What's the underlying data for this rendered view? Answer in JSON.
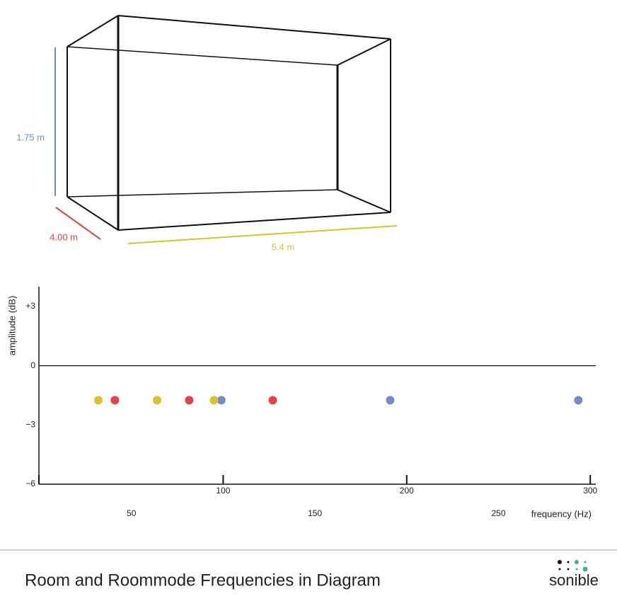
{
  "chart_data": {
    "type": "scatter",
    "x_label": "frequency (Hz)",
    "y_label": "amplitude (dB)",
    "xlim": [
      0,
      303
    ],
    "ylim": [
      -6,
      4
    ],
    "xticks": [
      50,
      100,
      150,
      200,
      250,
      300
    ],
    "yticks": [
      {
        "value": 3,
        "label": "+3"
      },
      0,
      {
        "value": -3,
        "label": "−3"
      },
      {
        "value": -6,
        "label": "−6"
      }
    ],
    "series": [
      {
        "name": "1.75 m",
        "color": "#6f8cc7",
        "x": [
          99,
          191,
          293.5
        ],
        "values": [
          -1.75,
          -1.75,
          -1.75
        ]
      },
      {
        "name": "4.00 m",
        "color": "#e04444",
        "x": [
          41,
          81.5,
          127
        ],
        "values": [
          -1.75,
          -1.75,
          -1.75
        ]
      },
      {
        "name": "5.4 m",
        "color": "#d9c22e",
        "x": [
          32,
          64,
          95
        ],
        "values": [
          -1.75,
          -1.75,
          -1.75
        ]
      }
    ]
  },
  "footer": {
    "title": "Room and Roommode Frequencies in Diagram",
    "logo": "sonible"
  }
}
